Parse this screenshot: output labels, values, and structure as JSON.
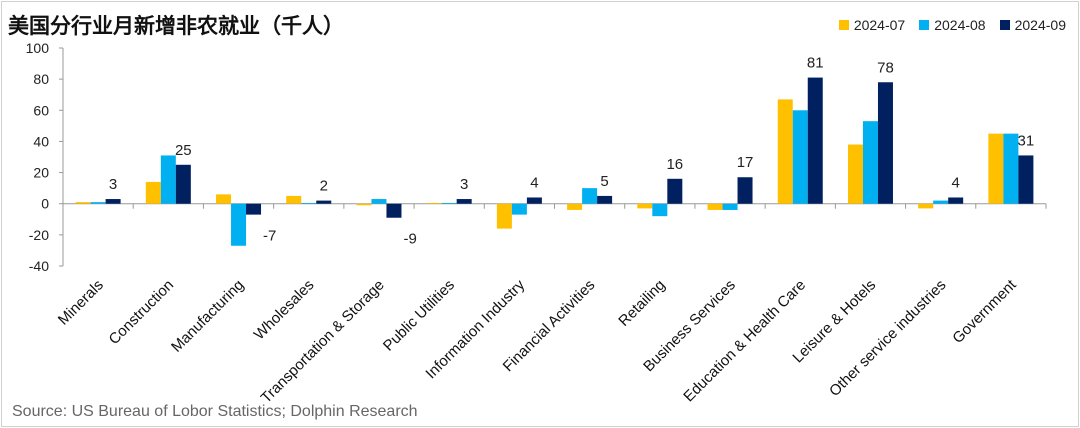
{
  "chart_data": {
    "type": "bar",
    "title": "美国分行业月新增非农就业（千人）",
    "xlabel": "",
    "ylabel": "",
    "ylim": [
      -40,
      100
    ],
    "yticks": [
      100,
      80,
      60,
      40,
      20,
      0,
      -20,
      -40
    ],
    "grid": false,
    "legend_position": "top-right",
    "categories": [
      "Minerals",
      "Construction",
      "Manufacturing",
      "Wholesales",
      "Transportation & Storage",
      "Public Utilities",
      "Information Industry",
      "Financial Activities",
      "Retailing",
      "Business Services",
      "Education & Health Care",
      "Leisure & Hotels",
      "Other service industries",
      "Government"
    ],
    "series": [
      {
        "name": "2024-07",
        "color": "#FFC000",
        "values": [
          1,
          14,
          6,
          5,
          -1,
          0.5,
          -16,
          -4,
          -3,
          -4,
          67,
          38,
          -3,
          45
        ]
      },
      {
        "name": "2024-08",
        "color": "#00B0F0",
        "values": [
          1,
          31,
          -27,
          0.5,
          3,
          0.5,
          -7,
          10,
          -8,
          -4,
          60,
          53,
          2,
          45
        ]
      },
      {
        "name": "2024-09",
        "color": "#002060",
        "values": [
          3,
          25,
          -7,
          2,
          -9,
          3,
          4,
          5,
          16,
          17,
          81,
          78,
          4,
          31
        ],
        "data_labels": [
          "3",
          "25",
          "-7",
          "2",
          "-9",
          "3",
          "4",
          "5",
          "16",
          "17",
          "81",
          "78",
          "4",
          "31"
        ]
      }
    ],
    "source": "Source: US Bureau of Lobor Statistics; Dolphin Research"
  }
}
